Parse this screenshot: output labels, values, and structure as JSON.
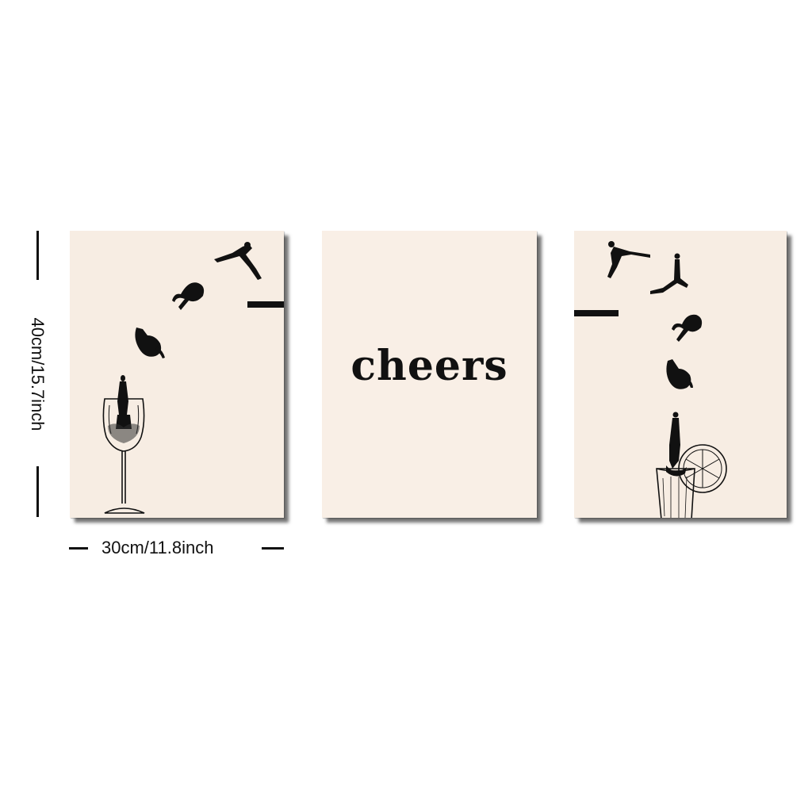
{
  "prints": [
    {
      "id": "left",
      "subject": "divers-into-wine-glass"
    },
    {
      "id": "center",
      "text": "cheers"
    },
    {
      "id": "right",
      "subject": "divers-into-cocktail-glass-with-citrus-slice"
    }
  ],
  "dimensions": {
    "height_label": "40cm/15.7inch",
    "width_label": "30cm/11.8inch"
  },
  "colors": {
    "paper": "#f7ede3",
    "ink": "#111111",
    "background": "#ffffff"
  }
}
